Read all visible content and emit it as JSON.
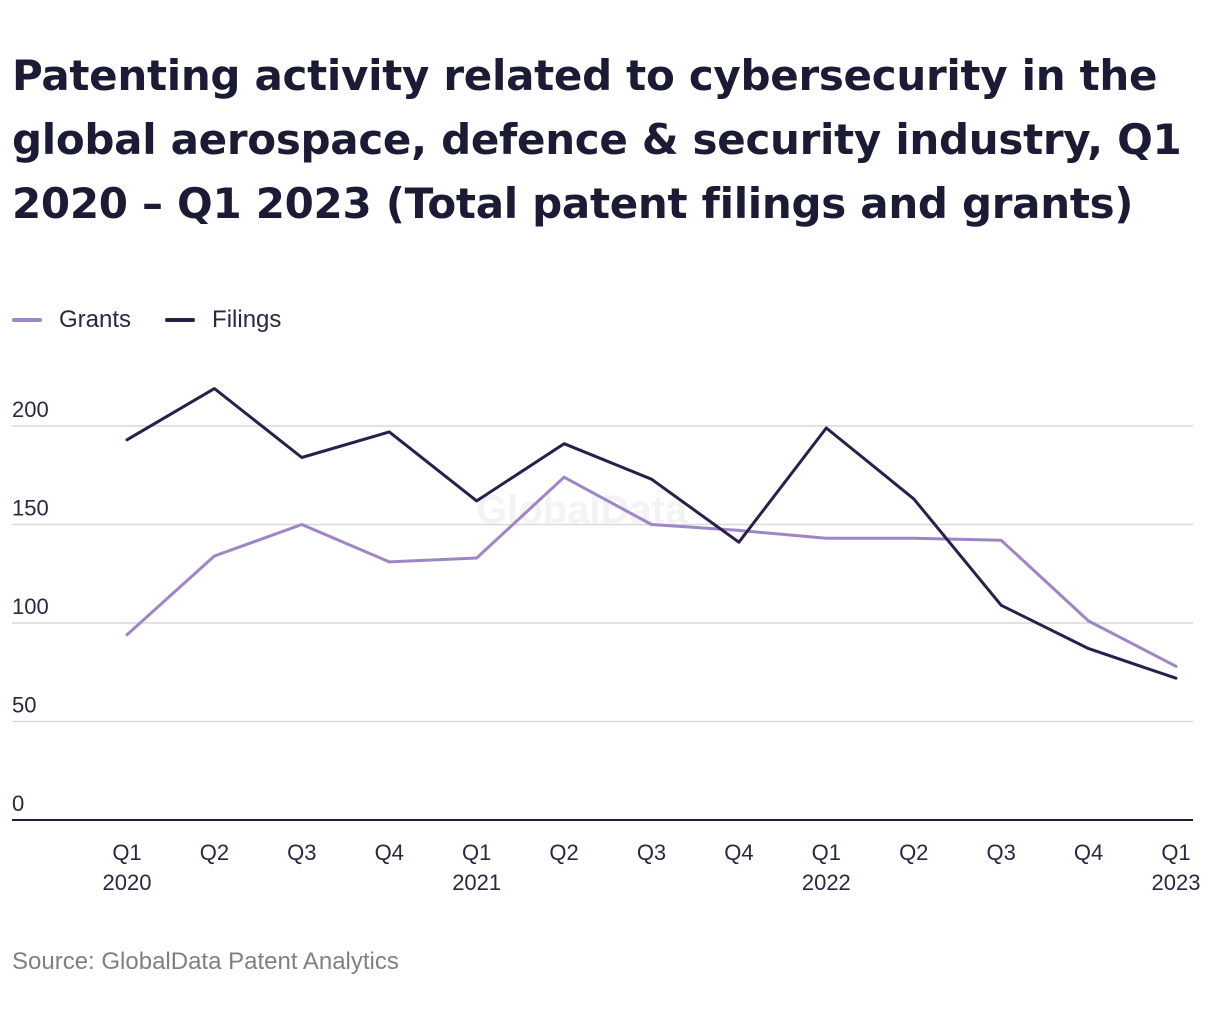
{
  "title": "Patenting activity related to cybersecurity in the global aerospace, defence & security industry, Q1 2020 – Q1 2023 (Total patent filings and grants)",
  "source": "Source: GlobalData Patent Analytics",
  "watermark": "GlobalData",
  "legend": [
    {
      "label": "Grants",
      "color": "#9e86c6"
    },
    {
      "label": "Filings",
      "color": "#2a1f4a"
    }
  ],
  "chart_data": {
    "type": "line",
    "title": "Patenting activity related to cybersecurity in the global aerospace, defence & security industry, Q1 2020 – Q1 2023 (Total patent filings and grants)",
    "x_ticks": [
      [
        "Q1",
        "2020"
      ],
      [
        "Q2",
        ""
      ],
      [
        "Q3",
        ""
      ],
      [
        "Q4",
        ""
      ],
      [
        "Q1",
        "2021"
      ],
      [
        "Q2",
        ""
      ],
      [
        "Q3",
        ""
      ],
      [
        "Q4",
        ""
      ],
      [
        "Q1",
        "2022"
      ],
      [
        "Q2",
        ""
      ],
      [
        "Q3",
        ""
      ],
      [
        "Q4",
        ""
      ],
      [
        "Q1",
        "2023"
      ]
    ],
    "categories": [
      "Q1 2020",
      "Q2 2020",
      "Q3 2020",
      "Q4 2020",
      "Q1 2021",
      "Q2 2021",
      "Q3 2021",
      "Q4 2021",
      "Q1 2022",
      "Q2 2022",
      "Q3 2022",
      "Q4 2022",
      "Q1 2023"
    ],
    "series": [
      {
        "name": "Grants",
        "color": "#9e86c6",
        "values": [
          94,
          134,
          150,
          131,
          133,
          174,
          150,
          147,
          143,
          143,
          142,
          101,
          78
        ]
      },
      {
        "name": "Filings",
        "color": "#2a1f4a",
        "values": [
          193,
          219,
          184,
          197,
          162,
          191,
          173,
          141,
          199,
          163,
          109,
          87,
          72
        ]
      }
    ],
    "y_ticks": [
      0,
      50,
      100,
      150,
      200
    ],
    "ylim": [
      0,
      200
    ],
    "grid": true,
    "legend_position": "top-left"
  }
}
